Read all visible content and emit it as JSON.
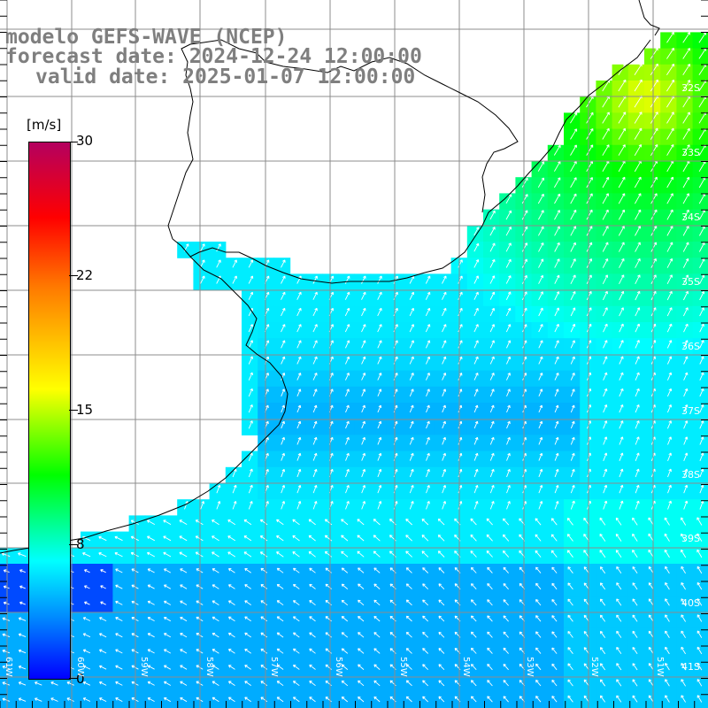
{
  "title": {
    "line1": "modelo GEFS-WAVE (NCEP)",
    "line2": "forecast date: 2024-12-24 12:00:00",
    "line3": "valid date: 2025-01-07 12:00:00"
  },
  "colorbar": {
    "unit": "[m/s]",
    "ticks": [
      "30",
      "22",
      "15",
      "8",
      "0"
    ],
    "tick_values": [
      30,
      22,
      15,
      8,
      0
    ],
    "colors": [
      "#b4005f",
      "#ff0000",
      "#ff7a00",
      "#ffff00",
      "#00ff00",
      "#00ffff",
      "#0090ff",
      "#0000ff"
    ]
  },
  "lat_labels": [
    "32S",
    "33S",
    "34S",
    "35S",
    "36S",
    "37S",
    "38S",
    "39S",
    "40S",
    "41S"
  ],
  "lon_labels": [
    "61W",
    "60W",
    "59W",
    "58W",
    "57W",
    "56W",
    "55W",
    "54W",
    "53W",
    "52W",
    "51W"
  ],
  "colors": {
    "land": "#ffffff",
    "grid": "#8c8c8c",
    "coast": "#000000",
    "arrow": "#ffffff",
    "title_text": "#7f7f7f"
  }
}
